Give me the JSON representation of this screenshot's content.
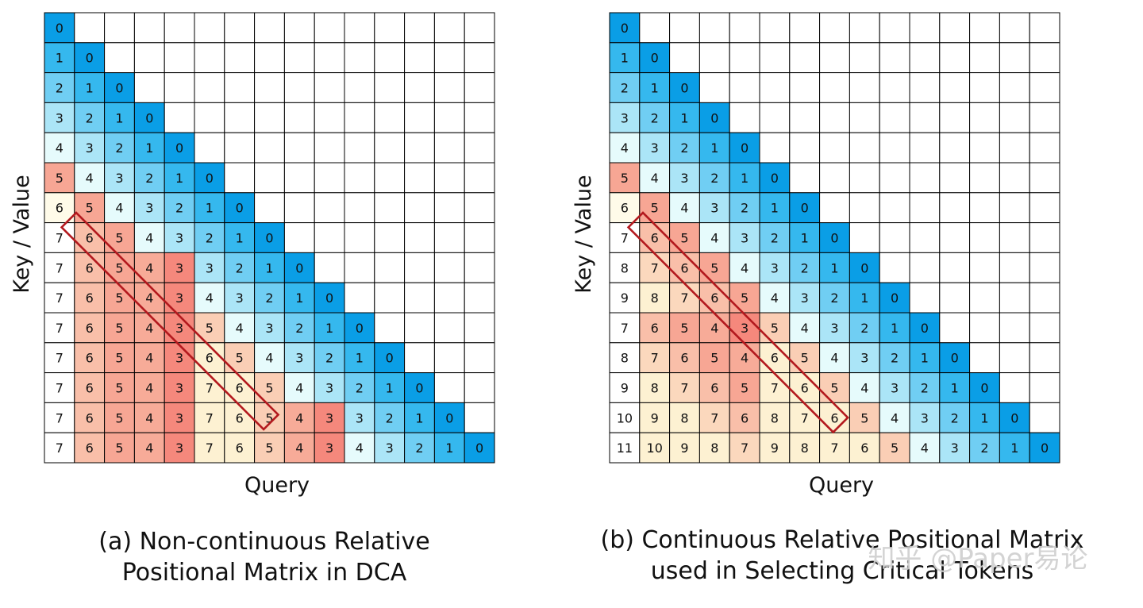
{
  "colors": {
    "zero": "#0a9ee6",
    "blue_light": "#e6fbfc",
    "warm_light": "#fdf1d2",
    "warm_strong": "#ef4242",
    "empty": "#ffffff",
    "grid": "#000000",
    "highlight": "#b3191e"
  },
  "panels": [
    {
      "id": "a",
      "x_axis_label": "Query",
      "y_axis_label": "Key / Value",
      "caption_lines": [
        "(a)  Non-continuous Relative",
        "Positional Matrix in DCA"
      ],
      "matrix": [
        [
          0
        ],
        [
          1,
          0
        ],
        [
          2,
          1,
          0
        ],
        [
          3,
          2,
          1,
          0
        ],
        [
          4,
          3,
          2,
          1,
          0
        ],
        [
          5,
          4,
          3,
          2,
          1,
          0
        ],
        [
          6,
          5,
          4,
          3,
          2,
          1,
          0
        ],
        [
          7,
          6,
          5,
          4,
          3,
          2,
          1,
          0
        ],
        [
          7,
          6,
          5,
          4,
          3,
          3,
          2,
          1,
          0
        ],
        [
          7,
          6,
          5,
          4,
          3,
          4,
          3,
          2,
          1,
          0
        ],
        [
          7,
          6,
          5,
          4,
          3,
          5,
          4,
          3,
          2,
          1,
          0
        ],
        [
          7,
          6,
          5,
          4,
          3,
          6,
          5,
          4,
          3,
          2,
          1,
          0
        ],
        [
          7,
          6,
          5,
          4,
          3,
          7,
          6,
          5,
          4,
          3,
          2,
          1,
          0
        ],
        [
          7,
          6,
          5,
          4,
          3,
          7,
          6,
          5,
          4,
          3,
          3,
          2,
          1,
          0
        ],
        [
          7,
          6,
          5,
          4,
          3,
          7,
          6,
          5,
          4,
          3,
          4,
          3,
          2,
          1,
          0
        ]
      ]
    },
    {
      "id": "b",
      "x_axis_label": "Query",
      "y_axis_label": "Key / Value",
      "caption_lines": [
        "(b) Continuous Relative Positional Matrix",
        "used in Selecting Critical Tokens"
      ],
      "matrix": [
        [
          0
        ],
        [
          1,
          0
        ],
        [
          2,
          1,
          0
        ],
        [
          3,
          2,
          1,
          0
        ],
        [
          4,
          3,
          2,
          1,
          0
        ],
        [
          5,
          4,
          3,
          2,
          1,
          0
        ],
        [
          6,
          5,
          4,
          3,
          2,
          1,
          0
        ],
        [
          7,
          6,
          5,
          4,
          3,
          2,
          1,
          0
        ],
        [
          8,
          7,
          6,
          5,
          4,
          3,
          2,
          1,
          0
        ],
        [
          9,
          8,
          7,
          6,
          5,
          4,
          3,
          2,
          1,
          0
        ],
        [
          7,
          6,
          5,
          4,
          3,
          5,
          4,
          3,
          2,
          1,
          0
        ],
        [
          8,
          7,
          6,
          5,
          4,
          6,
          5,
          4,
          3,
          2,
          1,
          0
        ],
        [
          9,
          8,
          7,
          6,
          5,
          7,
          6,
          5,
          4,
          3,
          2,
          1,
          0
        ],
        [
          10,
          9,
          8,
          7,
          6,
          8,
          7,
          6,
          5,
          4,
          3,
          2,
          1,
          0
        ],
        [
          11,
          10,
          9,
          8,
          7,
          9,
          8,
          7,
          6,
          5,
          4,
          3,
          2,
          1,
          0
        ]
      ]
    }
  ],
  "watermark": "知乎 @Paper易论"
}
